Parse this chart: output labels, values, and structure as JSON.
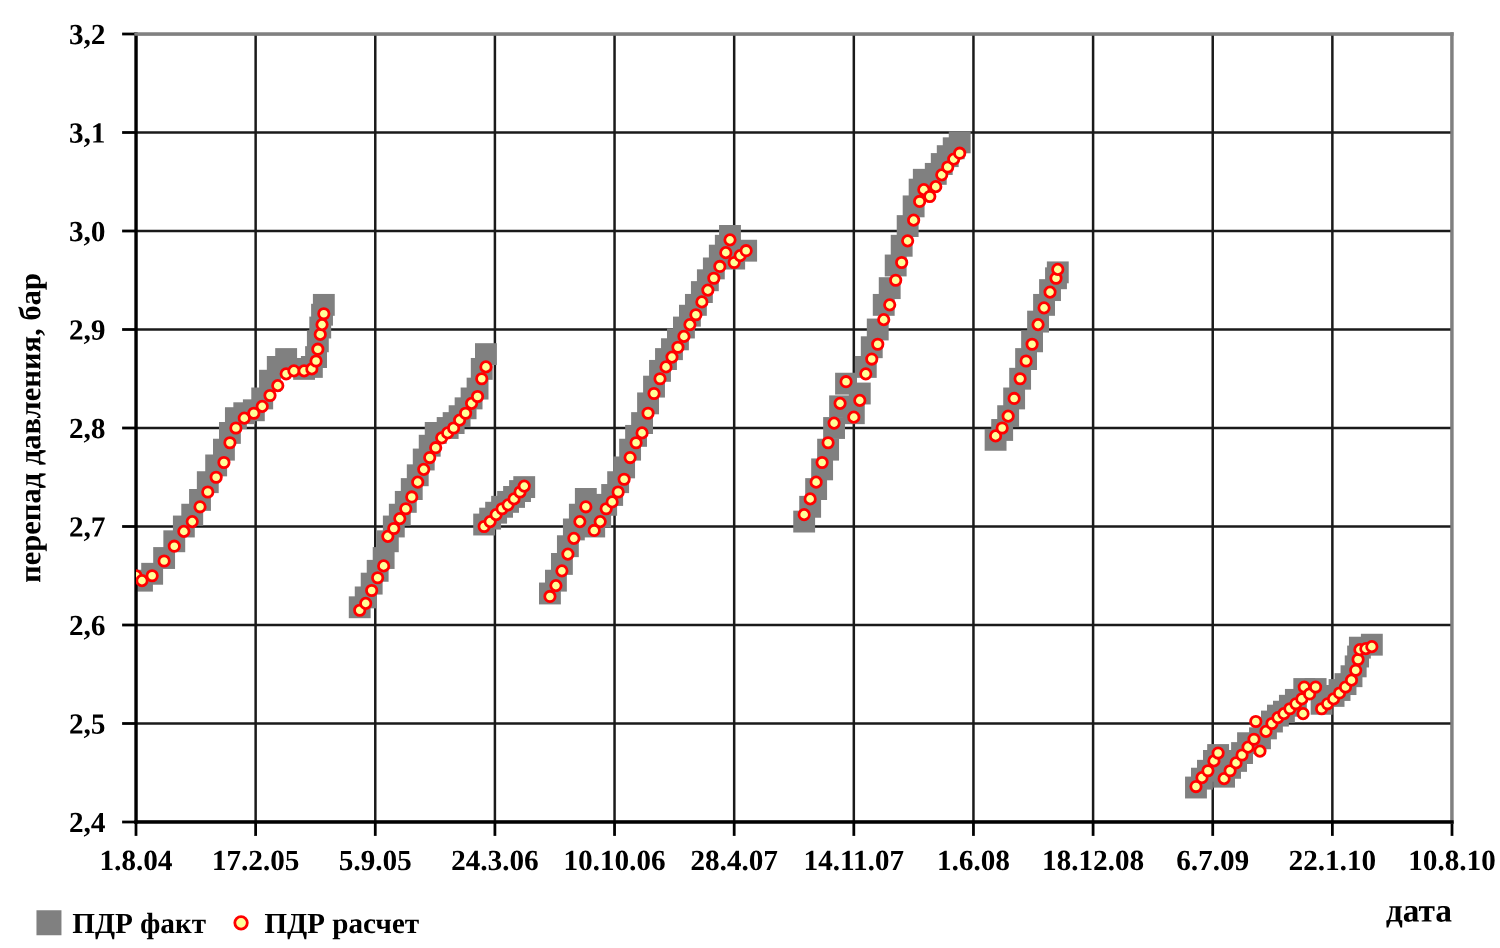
{
  "chart_data": {
    "type": "scatter",
    "xlabel": "дата",
    "ylabel": "перепад давления, бар",
    "x": [
      "2004-08-01",
      "2004-08-11",
      "2004-08-28",
      "2004-09-17",
      "2004-10-04",
      "2004-10-20",
      "2004-11-03",
      "2004-11-16",
      "2004-11-29",
      "2004-12-13",
      "2004-12-26",
      "2005-01-05",
      "2005-01-15",
      "2005-01-29",
      "2005-02-14",
      "2005-02-28",
      "2005-03-13",
      "2005-03-26",
      "2005-04-09",
      "2005-04-22",
      "2005-05-09",
      "2005-05-22",
      "2005-05-29",
      "2005-06-01",
      "2005-06-05",
      "2005-06-08",
      "2005-06-11",
      "2005-08-10",
      "2005-08-20",
      "2005-08-30",
      "2005-09-09",
      "2005-09-19",
      "2005-09-26",
      "2005-10-06",
      "2005-10-16",
      "2005-10-26",
      "2005-11-05",
      "2005-11-15",
      "2005-11-25",
      "2005-12-05",
      "2005-12-15",
      "2005-12-25",
      "2006-01-04",
      "2006-01-14",
      "2006-01-24",
      "2006-02-03",
      "2006-02-13",
      "2006-02-23",
      "2006-03-02",
      "2006-03-09",
      "2006-03-06",
      "2006-03-16",
      "2006-03-26",
      "2006-04-05",
      "2006-04-15",
      "2006-04-25",
      "2006-05-05",
      "2006-05-12",
      "2006-06-24",
      "2006-07-04",
      "2006-07-14",
      "2006-07-24",
      "2006-08-03",
      "2006-08-13",
      "2006-08-23",
      "2006-09-06",
      "2006-09-16",
      "2006-09-26",
      "2006-10-06",
      "2006-10-16",
      "2006-10-26",
      "2006-11-05",
      "2006-11-15",
      "2006-11-25",
      "2006-12-05",
      "2006-12-15",
      "2006-12-25",
      "2007-01-04",
      "2007-01-14",
      "2007-01-24",
      "2007-02-03",
      "2007-02-13",
      "2007-02-23",
      "2007-03-05",
      "2007-03-15",
      "2007-03-25",
      "2007-04-04",
      "2007-04-14",
      "2007-04-21",
      "2007-04-28",
      "2007-05-08",
      "2007-05-18",
      "2007-08-23",
      "2007-09-02",
      "2007-09-12",
      "2007-09-22",
      "2007-10-02",
      "2007-10-12",
      "2007-10-22",
      "2007-11-01",
      "2007-11-14",
      "2007-11-24",
      "2007-12-04",
      "2007-12-14",
      "2007-12-24",
      "2008-01-03",
      "2008-01-13",
      "2008-01-23",
      "2008-02-02",
      "2008-02-12",
      "2008-02-22",
      "2008-03-03",
      "2008-03-10",
      "2008-03-20",
      "2008-03-30",
      "2008-04-09",
      "2008-04-19",
      "2008-04-29",
      "2008-05-09",
      "2008-07-08",
      "2008-07-19",
      "2008-07-29",
      "2008-08-08",
      "2008-08-18",
      "2008-08-28",
      "2008-09-07",
      "2008-09-17",
      "2008-09-27",
      "2008-10-07",
      "2008-10-17",
      "2008-10-20",
      "2009-06-08",
      "2009-06-18",
      "2009-06-28",
      "2009-07-08",
      "2009-07-15",
      "2009-07-25",
      "2009-08-04",
      "2009-08-14",
      "2009-08-24",
      "2009-09-03",
      "2009-09-13",
      "2009-09-16",
      "2009-09-23",
      "2009-10-03",
      "2009-10-13",
      "2009-10-23",
      "2009-11-02",
      "2009-11-12",
      "2009-11-22",
      "2009-12-02",
      "2009-12-04",
      "2009-12-06",
      "2009-12-15",
      "2009-12-25",
      "2010-01-04",
      "2010-01-14",
      "2010-01-24",
      "2010-02-03",
      "2010-02-13",
      "2010-02-23",
      "2010-03-02",
      "2010-03-06",
      "2010-03-09",
      "2010-03-19",
      "2010-03-29"
    ],
    "series": [
      {
        "name": "ПДР факт",
        "color": "#808080",
        "marker": "square",
        "x": [
          "2004-08-11",
          "2004-08-28",
          "2004-09-17",
          "2004-10-04",
          "2004-10-20",
          "2004-11-03",
          "2004-11-16",
          "2004-11-29",
          "2004-12-13",
          "2004-12-26",
          "2005-01-05",
          "2005-01-15",
          "2005-01-29",
          "2005-02-14",
          "2005-02-28",
          "2005-03-13",
          "2005-03-26",
          "2005-04-09",
          "2005-05-09",
          "2005-05-22",
          "2005-05-29",
          "2005-06-01",
          "2005-06-05",
          "2005-06-08",
          "2005-06-11",
          "2005-08-10",
          "2005-08-20",
          "2005-08-30",
          "2005-09-09",
          "2005-09-19",
          "2005-09-26",
          "2005-10-06",
          "2005-10-16",
          "2005-10-26",
          "2005-11-05",
          "2005-11-15",
          "2005-11-25",
          "2005-12-05",
          "2005-12-15",
          "2006-01-04",
          "2006-01-14",
          "2006-01-24",
          "2006-02-03",
          "2006-02-13",
          "2006-02-23",
          "2006-03-02",
          "2006-03-09",
          "2006-03-06",
          "2006-03-16",
          "2006-03-26",
          "2006-04-05",
          "2006-04-15",
          "2006-04-25",
          "2006-05-05",
          "2006-05-12",
          "2006-06-24",
          "2006-07-04",
          "2006-07-14",
          "2006-07-24",
          "2006-08-03",
          "2006-08-13",
          "2006-08-23",
          "2006-09-06",
          "2006-09-16",
          "2006-09-26",
          "2006-10-06",
          "2006-10-16",
          "2006-10-26",
          "2006-11-05",
          "2006-11-15",
          "2006-11-25",
          "2006-12-05",
          "2006-12-15",
          "2006-12-25",
          "2007-01-04",
          "2007-01-14",
          "2007-01-24",
          "2007-02-03",
          "2007-02-13",
          "2007-02-23",
          "2007-03-05",
          "2007-03-15",
          "2007-03-25",
          "2007-04-04",
          "2007-04-14",
          "2007-04-21",
          "2007-04-28",
          "2007-05-18",
          "2007-08-23",
          "2007-09-02",
          "2007-09-12",
          "2007-09-22",
          "2007-10-02",
          "2007-10-12",
          "2007-10-22",
          "2007-11-01",
          "2007-11-14",
          "2007-11-24",
          "2007-12-04",
          "2007-12-14",
          "2007-12-24",
          "2008-01-03",
          "2008-01-13",
          "2008-01-23",
          "2008-02-02",
          "2008-02-12",
          "2008-02-22",
          "2008-03-03",
          "2008-03-10",
          "2008-03-30",
          "2008-04-09",
          "2008-04-19",
          "2008-04-29",
          "2008-05-09",
          "2008-07-08",
          "2008-07-19",
          "2008-07-29",
          "2008-08-08",
          "2008-08-18",
          "2008-08-28",
          "2008-09-07",
          "2008-09-17",
          "2008-09-27",
          "2008-10-07",
          "2008-10-17",
          "2008-10-20",
          "2009-06-08",
          "2009-06-18",
          "2009-06-28",
          "2009-07-08",
          "2009-07-15",
          "2009-07-25",
          "2009-08-04",
          "2009-08-14",
          "2009-08-24",
          "2009-09-03",
          "2009-09-23",
          "2009-10-03",
          "2009-10-13",
          "2009-10-23",
          "2009-11-02",
          "2009-11-12",
          "2009-11-22",
          "2009-12-06",
          "2009-12-25",
          "2010-01-04",
          "2010-01-24",
          "2010-02-03",
          "2010-02-13",
          "2010-02-23",
          "2010-03-02",
          "2010-03-06",
          "2010-03-09",
          "2010-03-29"
        ],
        "values": [
          2.645,
          2.652,
          2.668,
          2.685,
          2.7,
          2.712,
          2.727,
          2.745,
          2.762,
          2.778,
          2.795,
          2.81,
          2.815,
          2.818,
          2.83,
          2.848,
          2.862,
          2.87,
          2.86,
          2.862,
          2.872,
          2.888,
          2.902,
          2.915,
          2.925,
          2.618,
          2.628,
          2.642,
          2.655,
          2.668,
          2.685,
          2.7,
          2.712,
          2.725,
          2.738,
          2.752,
          2.768,
          2.782,
          2.795,
          2.8,
          2.805,
          2.812,
          2.82,
          2.83,
          2.84,
          2.86,
          2.875,
          2.702,
          2.708,
          2.714,
          2.72,
          2.725,
          2.73,
          2.736,
          2.74,
          2.632,
          2.645,
          2.662,
          2.68,
          2.697,
          2.712,
          2.728,
          2.7,
          2.71,
          2.722,
          2.732,
          2.745,
          2.76,
          2.778,
          2.792,
          2.805,
          2.825,
          2.842,
          2.858,
          2.87,
          2.88,
          2.89,
          2.902,
          2.914,
          2.925,
          2.938,
          2.95,
          2.962,
          2.975,
          2.985,
          2.995,
          2.972,
          2.98,
          2.705,
          2.72,
          2.738,
          2.758,
          2.778,
          2.8,
          2.822,
          2.845,
          2.815,
          2.835,
          2.862,
          2.882,
          2.9,
          2.925,
          2.942,
          2.965,
          2.985,
          3.005,
          3.025,
          3.042,
          3.052,
          3.058,
          3.068,
          3.076,
          3.084,
          3.09,
          2.788,
          2.798,
          2.812,
          2.83,
          2.85,
          2.87,
          2.888,
          2.908,
          2.925,
          2.94,
          2.952,
          2.958,
          2.435,
          2.444,
          2.452,
          2.462,
          2.468,
          2.446,
          2.455,
          2.462,
          2.47,
          2.48,
          2.485,
          2.495,
          2.502,
          2.508,
          2.512,
          2.518,
          2.524,
          2.535,
          2.535,
          2.52,
          2.528,
          2.534,
          2.54,
          2.548,
          2.558,
          2.568,
          2.577,
          2.58
        ]
      },
      {
        "name": "ПДР расчет",
        "color": "#ff0000",
        "marker": "circle",
        "values": [
          2.65,
          2.645,
          2.65,
          2.665,
          2.68,
          2.695,
          2.705,
          2.72,
          2.735,
          2.75,
          2.765,
          2.785,
          2.8,
          2.81,
          2.815,
          2.822,
          2.833,
          2.843,
          2.855,
          2.858,
          2.858,
          2.86,
          2.868,
          2.88,
          2.895,
          2.905,
          2.916,
          2.615,
          2.622,
          2.635,
          2.648,
          2.66,
          2.69,
          2.698,
          2.708,
          2.718,
          2.73,
          2.745,
          2.758,
          2.77,
          2.78,
          2.79,
          2.795,
          2.8,
          2.808,
          2.815,
          2.825,
          2.832,
          2.85,
          2.862,
          2.7,
          2.705,
          2.712,
          2.718,
          2.722,
          2.728,
          2.735,
          2.741,
          2.629,
          2.64,
          2.655,
          2.672,
          2.688,
          2.705,
          2.72,
          2.696,
          2.705,
          2.718,
          2.725,
          2.735,
          2.748,
          2.77,
          2.785,
          2.795,
          2.815,
          2.835,
          2.85,
          2.862,
          2.872,
          2.882,
          2.893,
          2.905,
          2.915,
          2.928,
          2.94,
          2.952,
          2.964,
          2.978,
          2.991,
          2.968,
          2.975,
          2.98,
          2.712,
          2.728,
          2.745,
          2.765,
          2.785,
          2.805,
          2.825,
          2.847,
          2.811,
          2.828,
          2.855,
          2.87,
          2.885,
          2.91,
          2.925,
          2.95,
          2.968,
          2.99,
          3.011,
          3.03,
          3.042,
          3.035,
          3.045,
          3.057,
          3.065,
          3.073,
          3.079,
          2.792,
          2.8,
          2.812,
          2.83,
          2.85,
          2.868,
          2.885,
          2.905,
          2.922,
          2.938,
          2.952,
          2.961,
          2.436,
          2.445,
          2.452,
          2.462,
          2.47,
          2.444,
          2.452,
          2.46,
          2.468,
          2.476,
          2.484,
          2.502,
          2.472,
          2.492,
          2.5,
          2.506,
          2.51,
          2.515,
          2.52,
          2.525,
          2.51,
          2.537,
          2.53,
          2.537,
          2.515,
          2.52,
          2.525,
          2.531,
          2.537,
          2.544,
          2.554,
          2.565,
          2.575,
          2.576,
          2.578
        ]
      }
    ],
    "xlim": [
      "2004-08-01",
      "2010-08-10"
    ],
    "xticks": [
      {
        "value": "2004-08-01",
        "label": "1.8.04"
      },
      {
        "value": "2005-02-17",
        "label": "17.2.05"
      },
      {
        "value": "2005-09-05",
        "label": "5.9.05"
      },
      {
        "value": "2006-03-24",
        "label": "24.3.06"
      },
      {
        "value": "2006-10-10",
        "label": "10.10.06"
      },
      {
        "value": "2007-04-28",
        "label": "28.4.07"
      },
      {
        "value": "2007-11-14",
        "label": "14.11.07"
      },
      {
        "value": "2008-06-01",
        "label": "1.6.08"
      },
      {
        "value": "2008-12-18",
        "label": "18.12.08"
      },
      {
        "value": "2009-07-06",
        "label": "6.7.09"
      },
      {
        "value": "2010-01-22",
        "label": "22.1.10"
      },
      {
        "value": "2010-08-10",
        "label": "10.8.10"
      }
    ],
    "ylim": [
      2.4,
      3.2
    ],
    "yticks": [
      {
        "value": 2.4,
        "label": "2,4"
      },
      {
        "value": 2.5,
        "label": "2,5"
      },
      {
        "value": 2.6,
        "label": "2,6"
      },
      {
        "value": 2.7,
        "label": "2,7"
      },
      {
        "value": 2.8,
        "label": "2,8"
      },
      {
        "value": 2.9,
        "label": "2,9"
      },
      {
        "value": 3.0,
        "label": "3,0"
      },
      {
        "value": 3.1,
        "label": "3,1"
      },
      {
        "value": 3.2,
        "label": "3,2"
      }
    ],
    "grid": true,
    "legend": "bottom left"
  }
}
